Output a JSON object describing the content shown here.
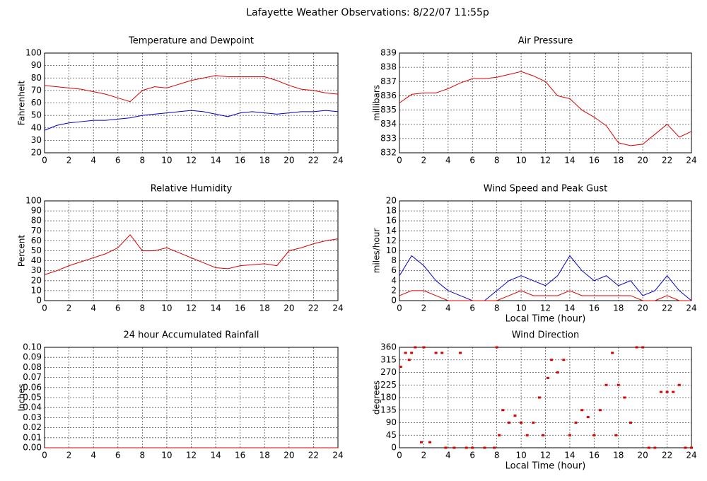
{
  "title": "Lafayette Weather Observations: 8/22/07 11:55p",
  "chart_data": [
    {
      "type": "line",
      "title": "Temperature and Dewpoint",
      "ylabel": "Fahrenheit",
      "x": [
        0,
        1,
        2,
        3,
        4,
        5,
        6,
        7,
        8,
        9,
        10,
        11,
        12,
        13,
        14,
        15,
        16,
        17,
        18,
        19,
        20,
        21,
        22,
        23,
        24
      ],
      "series": [
        {
          "name": "Temperature",
          "color": "#dd0000",
          "values": [
            74,
            73,
            72,
            71,
            69,
            67,
            64,
            61,
            70,
            73,
            72,
            75,
            78,
            80,
            82,
            81,
            81,
            81,
            81,
            78,
            74,
            71,
            70,
            68,
            67
          ]
        },
        {
          "name": "Dewpoint",
          "color": "#0000cc",
          "values": [
            38,
            42,
            44,
            45,
            46,
            46,
            47,
            48,
            50,
            51,
            52,
            53,
            54,
            53,
            51,
            49,
            52,
            53,
            52,
            51,
            52,
            53,
            53,
            54,
            53
          ]
        }
      ],
      "xlim": [
        0,
        24
      ],
      "xticks": [
        0,
        2,
        4,
        6,
        8,
        10,
        12,
        14,
        16,
        18,
        20,
        22,
        24
      ],
      "ylim": [
        20,
        100
      ],
      "yticks": [
        20,
        30,
        40,
        50,
        60,
        70,
        80,
        90,
        100
      ],
      "grid": true
    },
    {
      "type": "line",
      "title": "Air Pressure",
      "ylabel": "millibars",
      "x": [
        0,
        1,
        2,
        3,
        4,
        5,
        6,
        7,
        8,
        9,
        10,
        11,
        12,
        13,
        14,
        15,
        16,
        17,
        18,
        19,
        20,
        21,
        22,
        23,
        24
      ],
      "series": [
        {
          "name": "Pressure",
          "color": "#dd0000",
          "values": [
            835.5,
            836.1,
            836.2,
            836.2,
            836.5,
            836.9,
            837.2,
            837.2,
            837.3,
            837.5,
            837.7,
            837.4,
            837,
            836,
            835.8,
            835,
            834.5,
            833.9,
            832.7,
            832.5,
            832.6,
            833.3,
            834,
            833.1,
            833.5
          ]
        }
      ],
      "xlim": [
        0,
        24
      ],
      "xticks": [
        0,
        2,
        4,
        6,
        8,
        10,
        12,
        14,
        16,
        18,
        20,
        22,
        24
      ],
      "ylim": [
        832,
        839
      ],
      "yticks": [
        832,
        833,
        834,
        835,
        836,
        837,
        838,
        839
      ],
      "grid": true
    },
    {
      "type": "line",
      "title": "Relative Humidity",
      "ylabel": "Percent",
      "x": [
        0,
        1,
        2,
        3,
        4,
        5,
        6,
        7,
        8,
        9,
        10,
        11,
        12,
        13,
        14,
        15,
        16,
        17,
        18,
        19,
        20,
        21,
        22,
        23,
        24
      ],
      "series": [
        {
          "name": "Humidity",
          "color": "#dd0000",
          "values": [
            26,
            30,
            35,
            39,
            43,
            47,
            53,
            66,
            50,
            50,
            53,
            48,
            43,
            38,
            33,
            32,
            35,
            36,
            37,
            35,
            50,
            53,
            57,
            60,
            62
          ]
        }
      ],
      "xlim": [
        0,
        24
      ],
      "xticks": [
        0,
        2,
        4,
        6,
        8,
        10,
        12,
        14,
        16,
        18,
        20,
        22,
        24
      ],
      "ylim": [
        0,
        100
      ],
      "yticks": [
        0,
        10,
        20,
        30,
        40,
        50,
        60,
        70,
        80,
        90,
        100
      ],
      "grid": true
    },
    {
      "type": "line",
      "title": "Wind Speed and Peak Gust",
      "ylabel": "miles/hour",
      "xlabel": "Local Time (hour)",
      "x": [
        0,
        1,
        2,
        3,
        4,
        5,
        6,
        7,
        8,
        9,
        10,
        11,
        12,
        13,
        14,
        15,
        16,
        17,
        18,
        19,
        20,
        21,
        22,
        23,
        24
      ],
      "series": [
        {
          "name": "Peak Gust",
          "color": "#0000cc",
          "values": [
            5,
            9,
            7,
            4,
            2,
            1,
            0,
            0,
            2,
            4,
            5,
            4,
            3,
            5,
            9,
            6,
            4,
            5,
            3,
            4,
            1,
            2,
            5,
            2,
            0
          ]
        },
        {
          "name": "Wind Speed",
          "color": "#dd0000",
          "values": [
            1,
            2,
            2,
            1,
            0,
            0,
            0,
            0,
            0,
            1,
            2,
            1,
            1,
            1,
            2,
            1,
            1,
            1,
            1,
            1,
            0,
            0,
            1,
            0,
            0
          ]
        }
      ],
      "xlim": [
        0,
        24
      ],
      "xticks": [
        0,
        2,
        4,
        6,
        8,
        10,
        12,
        14,
        16,
        18,
        20,
        22,
        24
      ],
      "ylim": [
        0,
        20
      ],
      "yticks": [
        0,
        2,
        4,
        6,
        8,
        10,
        12,
        14,
        16,
        18,
        20
      ],
      "grid": true
    },
    {
      "type": "line",
      "title": "24 hour Accumulated Rainfall",
      "ylabel": "Inches",
      "x": [
        0,
        24
      ],
      "series": [
        {
          "name": "Rainfall",
          "color": "#dd0000",
          "values": [
            0,
            0
          ]
        }
      ],
      "xlim": [
        0,
        24
      ],
      "xticks": [
        0,
        2,
        4,
        6,
        8,
        10,
        12,
        14,
        16,
        18,
        20,
        22,
        24
      ],
      "ylim": [
        0,
        0.1
      ],
      "yticks": [
        {
          "value": 0,
          "label": "0.00"
        },
        {
          "value": 0.01,
          "label": "0.01"
        },
        {
          "value": 0.02,
          "label": "0.02"
        },
        {
          "value": 0.03,
          "label": "0.03"
        },
        {
          "value": 0.04,
          "label": "0.04"
        },
        {
          "value": 0.05,
          "label": "0.05"
        },
        {
          "value": 0.06,
          "label": "0.06"
        },
        {
          "value": 0.07,
          "label": "0.07"
        },
        {
          "value": 0.08,
          "label": "0.08"
        },
        {
          "value": 0.09,
          "label": "0.09"
        },
        {
          "value": 0.1,
          "label": "0.10"
        }
      ],
      "grid": true
    },
    {
      "type": "scatter",
      "title": "Wind Direction",
      "ylabel": "degrees",
      "xlabel": "Local Time (hour)",
      "x": [
        0.1,
        0.5,
        0.8,
        1,
        1.3,
        1.8,
        2,
        2.5,
        3,
        3.5,
        3.8,
        4.5,
        5,
        5.5,
        6,
        7,
        7.8,
        8,
        8.2,
        8.5,
        9,
        9.5,
        10,
        10.5,
        11,
        11.5,
        11.8,
        12.2,
        12.5,
        13,
        13.5,
        14,
        14.5,
        15,
        15.5,
        16,
        16.5,
        17,
        17.5,
        17.8,
        18,
        18.5,
        19,
        19.5,
        20,
        20.5,
        21,
        21.5,
        22,
        22.5,
        23,
        23.5,
        24
      ],
      "series": [
        {
          "name": "Direction",
          "color": "#dd0000",
          "values": [
            290,
            340,
            315,
            340,
            360,
            20,
            360,
            20,
            340,
            340,
            0,
            0,
            340,
            0,
            0,
            0,
            0,
            360,
            45,
            135,
            90,
            115,
            90,
            45,
            90,
            180,
            45,
            250,
            315,
            270,
            315,
            45,
            90,
            135,
            110,
            45,
            135,
            225,
            340,
            45,
            225,
            180,
            90,
            360,
            360,
            0,
            0,
            200,
            200,
            200,
            225,
            0,
            0
          ]
        }
      ],
      "xlim": [
        0,
        24
      ],
      "xticks": [
        0,
        2,
        4,
        6,
        8,
        10,
        12,
        14,
        16,
        18,
        20,
        22,
        24
      ],
      "ylim": [
        0,
        360
      ],
      "yticks": [
        0,
        45,
        90,
        135,
        180,
        225,
        270,
        315,
        360
      ],
      "grid": true
    }
  ]
}
